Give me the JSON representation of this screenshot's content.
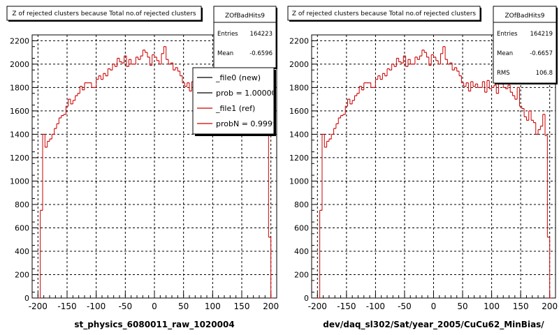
{
  "chart_data": [
    {
      "type": "histogram",
      "title": "Z of rejected clusters  because Total no.of rejected clusters",
      "xlabel": "st_physics_6080011_raw_1020004",
      "ylabel": "",
      "xlim": [
        -210,
        210
      ],
      "ylim": [
        0,
        2250
      ],
      "grid": true,
      "x_ticks": [
        "-200",
        "-150",
        "-100",
        "-50",
        "0",
        "50",
        "100",
        "150",
        "200"
      ],
      "y_ticks": [
        "0",
        "200",
        "400",
        "600",
        "800",
        "1000",
        "1200",
        "1400",
        "1600",
        "1800",
        "2000",
        "2200"
      ],
      "stats": {
        "name": "ZOfBadHits9",
        "rows": [
          {
            "label": "Entries",
            "value": "164223"
          },
          {
            "label": "Mean",
            "value": "-0.6596"
          }
        ]
      },
      "legend": {
        "position": "top-right",
        "entries": [
          {
            "label": "_file0 (new)",
            "color": "#000000"
          },
          {
            "label": "prob = 1.000000",
            "color": "#000000"
          },
          {
            "label": "_file1 (ref)",
            "color": "#cc0000"
          },
          {
            "label": "probN = 0.999984",
            "color": "#cc0000"
          }
        ]
      },
      "series": [
        {
          "color": "#cc0000",
          "bin_start": -200,
          "bin_width": 4,
          "values": [
            0,
            750,
            1400,
            1290,
            1340,
            1360,
            1400,
            1450,
            1490,
            1540,
            1560,
            1570,
            1640,
            1700,
            1660,
            1690,
            1730,
            1750,
            1810,
            1780,
            1840,
            1840,
            1840,
            1800,
            1800,
            1870,
            1900,
            1870,
            1920,
            1900,
            1960,
            1950,
            2000,
            1980,
            2050,
            2020,
            2010,
            2070,
            1980,
            2040,
            2000,
            2000,
            2060,
            2040,
            2070,
            2120,
            2100,
            2060,
            1990,
            2080,
            2060,
            2030,
            2000,
            2090,
            2150,
            2040,
            2000,
            2010,
            1950,
            1970,
            1940,
            1900,
            1840,
            1810,
            1840,
            1770,
            1850,
            1810,
            1830,
            1800,
            1800,
            1850,
            1760,
            1860,
            1790,
            1800,
            1820,
            1750,
            1850,
            1860,
            1800,
            1790,
            1820,
            1760,
            1730,
            1700,
            1800,
            1640,
            1620,
            1550,
            1520,
            1600,
            1520,
            1500,
            1400,
            1440,
            1470,
            1540,
            1390,
            520,
            0
          ]
        }
      ]
    },
    {
      "type": "histogram",
      "title": "Z of rejected clusters  because Total no.of rejected clusters",
      "xlabel": "dev/daq_sl302/Sat/year_2005/CuCu62_MinBias/",
      "ylabel": "",
      "xlim": [
        -210,
        210
      ],
      "ylim": [
        0,
        2250
      ],
      "grid": true,
      "x_ticks": [
        "-200",
        "-150",
        "-100",
        "-50",
        "0",
        "50",
        "100",
        "150",
        "200"
      ],
      "y_ticks": [
        "0",
        "200",
        "400",
        "600",
        "800",
        "1000",
        "1200",
        "1400",
        "1600",
        "1800",
        "2000",
        "2200"
      ],
      "stats": {
        "name": "ZOfBadHits9",
        "rows": [
          {
            "label": "Entries",
            "value": "164219"
          },
          {
            "label": "Mean",
            "value": "-0.6657"
          },
          {
            "label": "RMS",
            "value": "106.8"
          }
        ]
      },
      "legend": null,
      "series": [
        {
          "color": "#cc0000",
          "bin_start": -200,
          "bin_width": 4,
          "values": [
            0,
            750,
            1400,
            1290,
            1340,
            1360,
            1400,
            1450,
            1490,
            1540,
            1560,
            1570,
            1640,
            1700,
            1660,
            1690,
            1730,
            1750,
            1810,
            1780,
            1840,
            1840,
            1840,
            1800,
            1800,
            1870,
            1900,
            1870,
            1920,
            1900,
            1960,
            1950,
            2000,
            1980,
            2050,
            2020,
            2010,
            2070,
            1980,
            2040,
            2000,
            2000,
            2060,
            2040,
            2070,
            2120,
            2100,
            2060,
            1990,
            2080,
            2060,
            2030,
            2000,
            2090,
            2150,
            2040,
            2000,
            2010,
            1950,
            1970,
            1940,
            1900,
            1840,
            1810,
            1840,
            1770,
            1850,
            1810,
            1830,
            1800,
            1800,
            1850,
            1760,
            1860,
            1790,
            1800,
            1820,
            1750,
            1850,
            1860,
            1800,
            1790,
            1820,
            1760,
            1730,
            1700,
            1800,
            1640,
            1620,
            1550,
            1520,
            1600,
            1520,
            1500,
            1400,
            1440,
            1470,
            1570,
            1390,
            520,
            0
          ]
        }
      ]
    }
  ]
}
